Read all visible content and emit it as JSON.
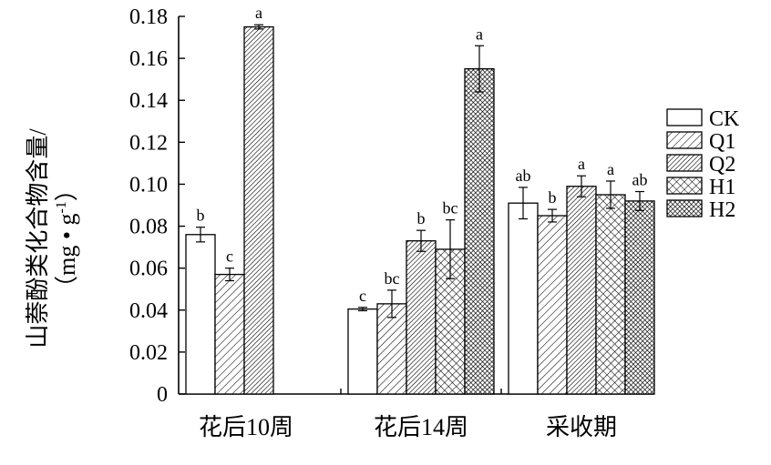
{
  "chart_data": {
    "type": "bar",
    "title": "",
    "ylabel_line1": "山萘酚类化合物含量/",
    "ylabel_line2_pre": "（mg • g",
    "ylabel_line2_sup": "-1",
    "ylabel_line2_post": "）",
    "xlabel": "",
    "ylim": [
      0,
      0.18
    ],
    "yticks": [
      "0",
      "0.02",
      "0.04",
      "0.06",
      "0.08",
      "0.10",
      "0.12",
      "0.14",
      "0.16",
      "0.18"
    ],
    "ytick_values": [
      0,
      0.02,
      0.04,
      0.06,
      0.08,
      0.1,
      0.12,
      0.14,
      0.16,
      0.18
    ],
    "categories": [
      "花后10周",
      "花后14周",
      "采收期"
    ],
    "legend_position": "right",
    "series": [
      {
        "name": "CK",
        "pattern": "white",
        "values": [
          0.076,
          0.0405,
          0.091
        ],
        "errors": [
          0.0035,
          0.0008,
          0.0075
        ],
        "letters": [
          "b",
          "c",
          "ab"
        ]
      },
      {
        "name": "Q1",
        "pattern": "diag-sparse",
        "values": [
          0.057,
          0.043,
          0.085
        ],
        "errors": [
          0.003,
          0.0065,
          0.003
        ],
        "letters": [
          "c",
          "bc",
          "b"
        ]
      },
      {
        "name": "Q2",
        "pattern": "diag-dense",
        "values": [
          0.175,
          0.073,
          0.099
        ],
        "errors": [
          0.001,
          0.005,
          0.005
        ],
        "letters": [
          "a",
          "b",
          "a"
        ]
      },
      {
        "name": "H1",
        "pattern": "cross-sparse",
        "values": [
          null,
          0.069,
          0.095
        ],
        "errors": [
          null,
          0.014,
          0.0065
        ],
        "letters": [
          null,
          "bc",
          "a"
        ]
      },
      {
        "name": "H2",
        "pattern": "cross-dense",
        "values": [
          null,
          0.155,
          0.092
        ],
        "errors": [
          null,
          0.011,
          0.0045
        ],
        "letters": [
          null,
          "a",
          "ab"
        ]
      }
    ]
  }
}
